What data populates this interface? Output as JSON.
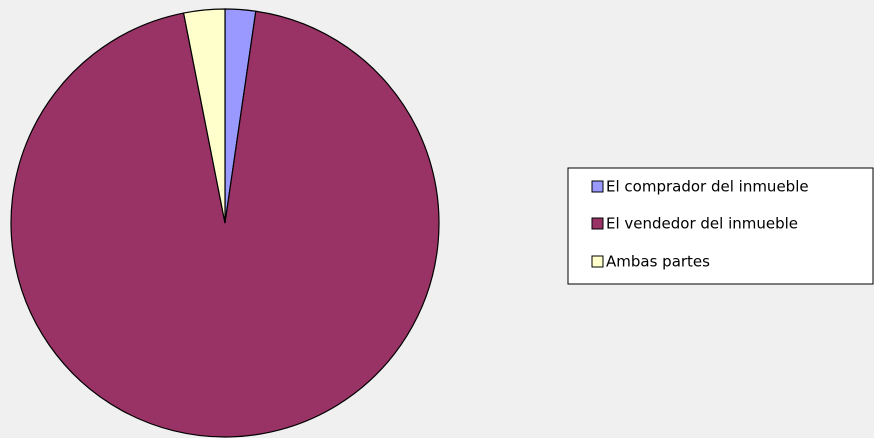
{
  "chart_data": {
    "type": "pie",
    "categories": [
      "El comprador del inmueble",
      "El vendedor del inmueble",
      "Ambas partes"
    ],
    "values": [
      2.3,
      94.6,
      3.1
    ],
    "colors": [
      "#9999ff",
      "#993366",
      "#ffffcc"
    ],
    "legend": "right"
  }
}
